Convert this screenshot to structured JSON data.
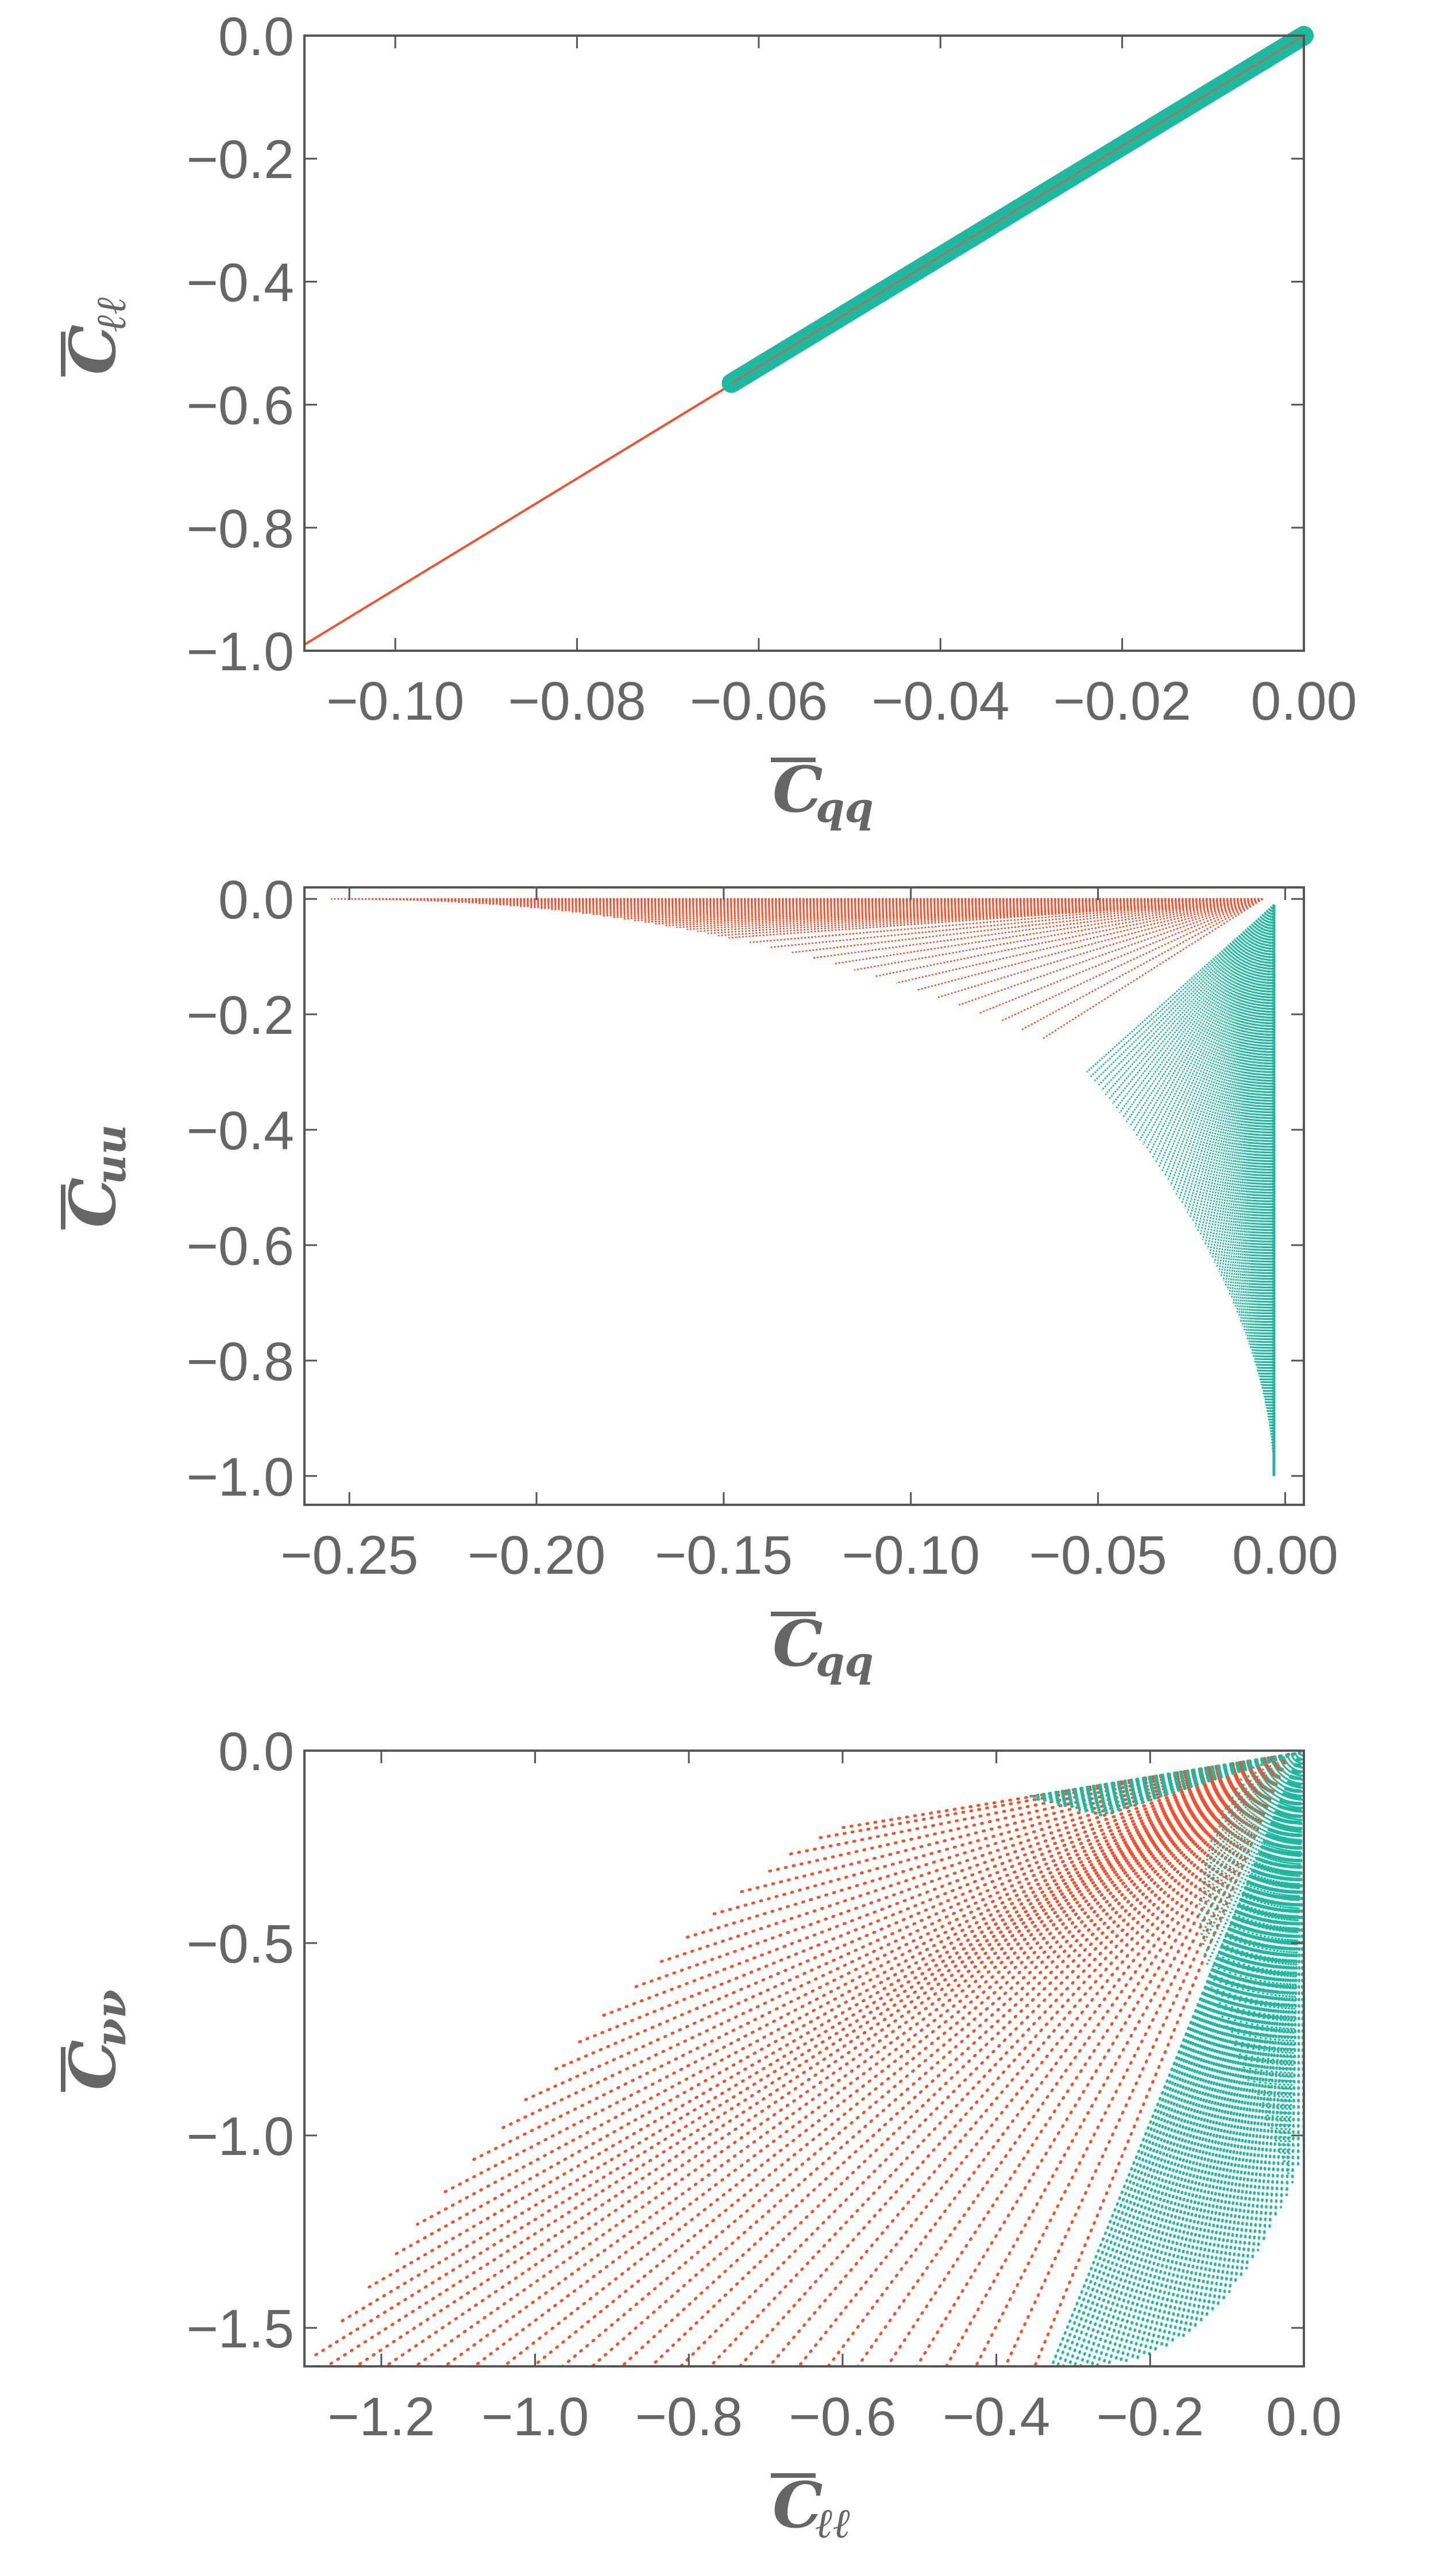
{
  "colors": {
    "red": "#F0522E",
    "teal": "#1FB8A0",
    "axis": "#555555",
    "text": "#666666"
  },
  "chart_data": [
    {
      "type": "scatter",
      "xlabel": {
        "main": "C",
        "sub": "qq"
      },
      "ylabel": {
        "main": "C",
        "sub": "ℓℓ"
      },
      "xlim": [
        -0.11,
        0.0
      ],
      "ylim": [
        -1.0,
        0.0
      ],
      "xticks": [
        -0.1,
        -0.08,
        -0.06,
        -0.04,
        -0.02,
        0.0
      ],
      "xtick_labels": [
        "−0.10",
        "−0.08",
        "−0.06",
        "−0.04",
        "−0.02",
        "0.00"
      ],
      "yticks": [
        0.0,
        -0.2,
        -0.4,
        -0.6,
        -0.8,
        -1.0
      ],
      "ytick_labels": [
        "0.0",
        "−0.2",
        "−0.4",
        "−0.6",
        "−0.8",
        "−1.0"
      ],
      "series": [
        {
          "color": "red",
          "kind": "line",
          "from": [
            -0.11,
            -0.99
          ],
          "to": [
            0.0,
            0.0
          ]
        },
        {
          "color": "teal",
          "kind": "thick-band",
          "from": [
            -0.063,
            -0.565
          ],
          "to": [
            0.0,
            0.0
          ]
        }
      ]
    },
    {
      "type": "scatter",
      "xlabel": {
        "main": "C",
        "sub": "qq"
      },
      "ylabel": {
        "main": "C",
        "sub": "uu"
      },
      "xlim": [
        -0.262,
        0.005
      ],
      "ylim": [
        -1.05,
        0.02
      ],
      "xticks": [
        -0.25,
        -0.2,
        -0.15,
        -0.1,
        -0.05,
        0.0
      ],
      "xtick_labels": [
        "−0.25",
        "−0.20",
        "−0.15",
        "−0.10",
        "−0.05",
        "0.00"
      ],
      "yticks": [
        0.0,
        -0.2,
        -0.4,
        -0.6,
        -0.8,
        -1.0
      ],
      "ytick_labels": [
        "0.0",
        "−0.2",
        "−0.4",
        "−0.6",
        "−0.8",
        "−1.0"
      ],
      "series": [
        {
          "color": "red",
          "kind": "fan",
          "apex": [
            0.0,
            0.0
          ],
          "tips_from": [
            -0.255,
            0.0
          ],
          "tips_to": [
            -0.062,
            -0.25
          ],
          "curve": "upper"
        },
        {
          "color": "teal",
          "kind": "fan",
          "apex": [
            0.0,
            0.0
          ],
          "tips_from": [
            -0.05,
            -0.3
          ],
          "tips_to": [
            0.0,
            -1.0
          ],
          "curve": "lower"
        }
      ]
    },
    {
      "type": "scatter",
      "xlabel": {
        "main": "C",
        "sub": "ℓℓ"
      },
      "ylabel": {
        "main": "C",
        "sub": "νν"
      },
      "xlim": [
        -1.3,
        0.0
      ],
      "ylim": [
        -1.6,
        0.0
      ],
      "xticks": [
        -1.2,
        -1.0,
        -0.8,
        -0.6,
        -0.4,
        -0.2,
        0.0
      ],
      "xtick_labels": [
        "−1.2",
        "−1.0",
        "−0.8",
        "−0.6",
        "−0.4",
        "−0.2",
        "0.0"
      ],
      "yticks": [
        0.0,
        -0.5,
        -1.0,
        -1.5
      ],
      "ytick_labels": [
        "0.0",
        "−0.5",
        "−1.0",
        "−1.5"
      ],
      "series": [
        {
          "color": "red",
          "kind": "dotted-fan",
          "region": "left"
        },
        {
          "color": "teal",
          "kind": "dotted-fan",
          "region": "right"
        }
      ]
    }
  ]
}
